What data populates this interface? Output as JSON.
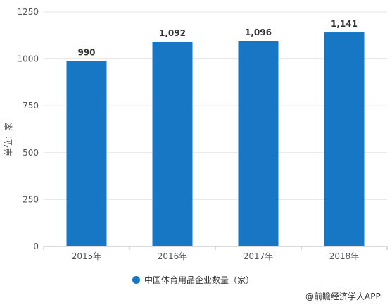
{
  "chart_data": {
    "type": "bar",
    "categories": [
      "2015年",
      "2016年",
      "2017年",
      "2018年"
    ],
    "series": [
      {
        "name": "中国体育用品企业数量（家）",
        "values": [
          990,
          1092,
          1096,
          1141
        ]
      }
    ],
    "value_labels": [
      "990",
      "1,092",
      "1,096",
      "1,141"
    ],
    "ylabel": "单位：家",
    "ylim": [
      0,
      1250
    ],
    "yticks": [
      0,
      250,
      500,
      750,
      1000,
      1250
    ],
    "grid": true,
    "legend_position": "bottom",
    "bar_color": "#1777C4"
  },
  "source": "@前瞻经济学人APP"
}
